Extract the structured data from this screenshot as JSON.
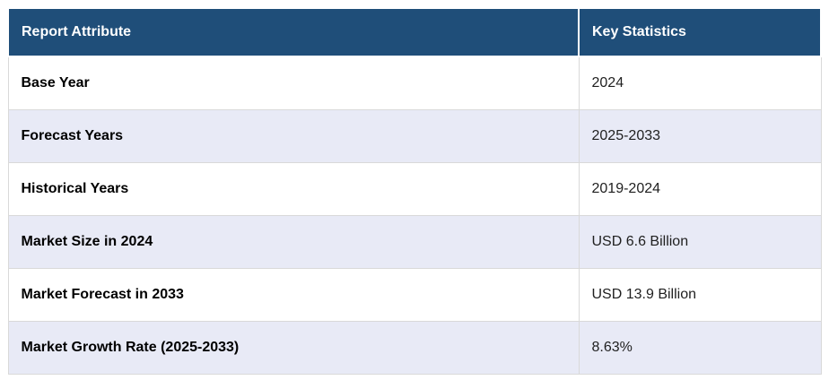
{
  "theme": {
    "header_bg": "#1f4e79",
    "header_text": "#ffffff",
    "stripe_bg": "#e8eaf6",
    "row_bg": "#ffffff",
    "border": "#d9d9d9",
    "attribute_text": "#000000",
    "value_text": "#1f1f1f",
    "page_bg": "#ffffff"
  },
  "table": {
    "columns": [
      {
        "label": "Report Attribute"
      },
      {
        "label": "Key Statistics"
      }
    ],
    "rows": [
      {
        "attribute": "Base Year",
        "value": "2024"
      },
      {
        "attribute": "Forecast Years",
        "value": "2025-2033"
      },
      {
        "attribute": "Historical Years",
        "value": "2019-2024"
      },
      {
        "attribute": "Market Size in 2024",
        "value": "USD 6.6 Billion"
      },
      {
        "attribute": "Market Forecast in 2033",
        "value": "USD 13.9 Billion"
      },
      {
        "attribute": "Market Growth Rate (2025-2033)",
        "value": "8.63%"
      }
    ]
  }
}
